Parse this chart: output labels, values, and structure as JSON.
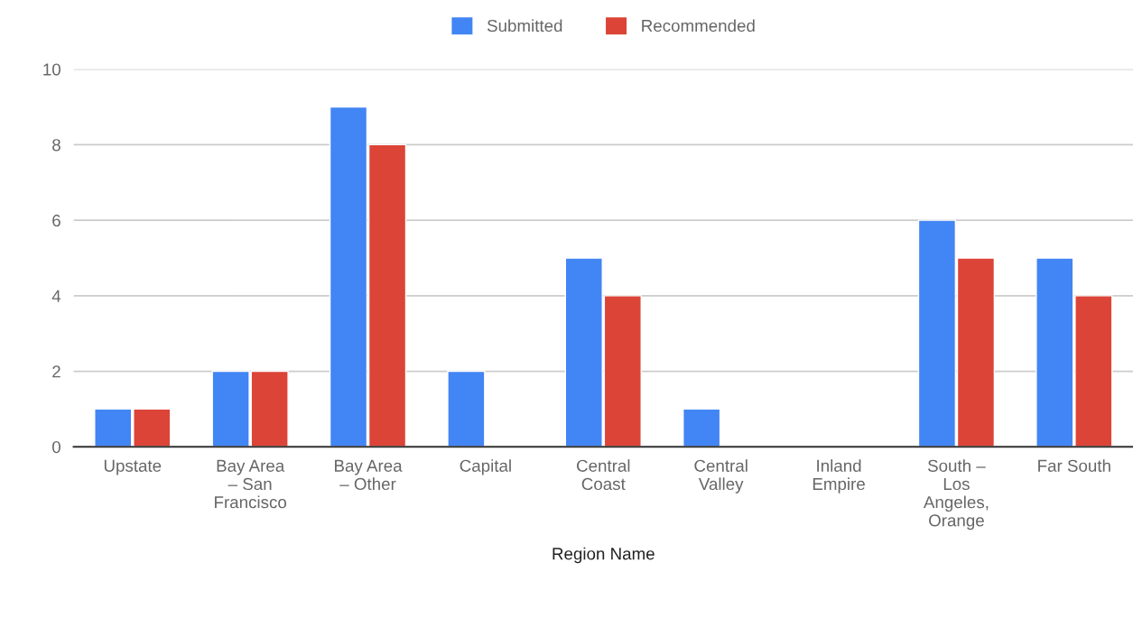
{
  "chart_data": {
    "type": "bar",
    "xlabel": "Region Name",
    "categories": [
      "Upstate",
      "Bay Area – San Francisco",
      "Bay Area – Other",
      "Capital",
      "Central Coast",
      "Central Valley",
      "Inland Empire",
      "South – Los Angeles, Orange",
      "Far South"
    ],
    "series": [
      {
        "name": "Submitted",
        "color": "#4285f4",
        "values": [
          1,
          2,
          9,
          2,
          5,
          1,
          null,
          6,
          5
        ]
      },
      {
        "name": "Recommended",
        "color": "#db4437",
        "values": [
          1,
          2,
          8,
          null,
          4,
          null,
          null,
          5,
          4
        ]
      }
    ],
    "ylim": [
      0,
      10
    ],
    "yticks": [
      0,
      2,
      4,
      6,
      8,
      10
    ],
    "grid": "y",
    "legend": "top"
  }
}
